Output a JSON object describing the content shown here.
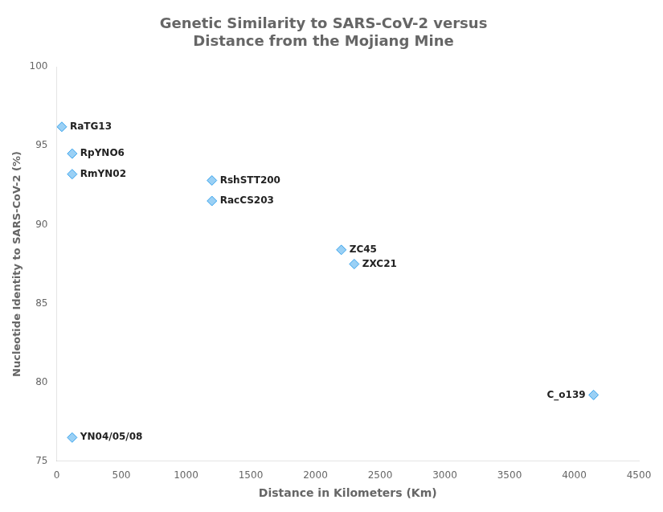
{
  "chart_data": {
    "type": "scatter",
    "title": [
      "Genetic Similarity to SARS-CoV-2 versus",
      "Distance from the Mojiang Mine"
    ],
    "xlabel": "Distance in Kilometers (Km)",
    "ylabel": "Nucleotide Identity to SARS-CoV-2 (%)",
    "x": [
      40,
      120,
      120,
      1200,
      1200,
      2200,
      2300,
      120,
      4150
    ],
    "values": [
      96.2,
      94.5,
      93.2,
      92.8,
      91.5,
      88.4,
      87.5,
      76.5,
      79.2
    ],
    "annotations": [
      "RaTG13",
      "RpYNO6",
      "RmYN02",
      "RshSTT200",
      "RacCS203",
      "ZC45",
      "ZXC21",
      "YN04/05/08",
      "C_o139"
    ],
    "xlim": [
      0,
      4500
    ],
    "ylim": [
      75,
      100
    ],
    "xticks": [
      0,
      500,
      1000,
      1500,
      2000,
      2500,
      3000,
      3500,
      4000,
      4500
    ],
    "yticks": [
      75,
      80,
      85,
      90,
      95,
      100
    ],
    "grid": false,
    "marker": "diamond"
  }
}
